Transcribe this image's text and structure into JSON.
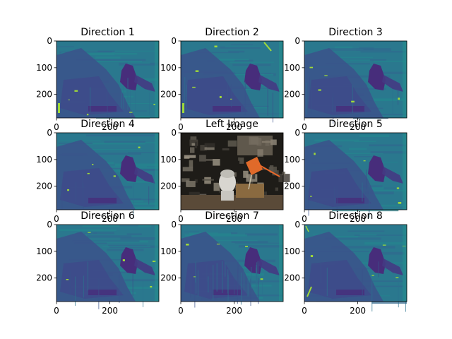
{
  "chart_data": {
    "type": "heatmap",
    "layout": "3x3 grid of image panels",
    "panels": [
      {
        "title": "Direction 1",
        "kind": "disparity",
        "seed": 11,
        "xticks": [
          "0",
          "200"
        ],
        "yticks": [
          "0",
          "100",
          "200"
        ]
      },
      {
        "title": "Direction 2",
        "kind": "disparity",
        "seed": 23,
        "xticks": [
          "0",
          "200"
        ],
        "yticks": [
          "0",
          "100",
          "200"
        ]
      },
      {
        "title": "Direction 3",
        "kind": "disparity",
        "seed": 37,
        "xticks": [
          "0",
          "200"
        ],
        "yticks": [
          "0",
          "100",
          "200"
        ]
      },
      {
        "title": "Direction 4",
        "kind": "disparity",
        "seed": 41,
        "xticks": [
          "0",
          "200"
        ],
        "yticks": [
          "0",
          "100",
          "200"
        ]
      },
      {
        "title": "Left Image",
        "kind": "photo",
        "seed": 53,
        "xticks": [
          "0",
          "200"
        ],
        "yticks": [
          "0",
          "100",
          "200"
        ]
      },
      {
        "title": "Direction 5",
        "kind": "disparity",
        "seed": 67,
        "xticks": [
          "0",
          "200"
        ],
        "yticks": [
          "0",
          "100",
          "200"
        ]
      },
      {
        "title": "Direction 6",
        "kind": "disparity",
        "seed": 71,
        "xticks": [
          "0",
          "200"
        ],
        "yticks": [
          "0",
          "100",
          "200"
        ]
      },
      {
        "title": "Direction 7",
        "kind": "disparity",
        "seed": 83,
        "xticks": [
          "0",
          "200"
        ],
        "yticks": [
          "0",
          "100",
          "200"
        ]
      },
      {
        "title": "Direction 8",
        "kind": "disparity",
        "seed": 97,
        "xticks": [
          "0",
          "200"
        ],
        "yticks": [
          "0",
          "100",
          "200"
        ]
      }
    ],
    "image_extent": {
      "x": [
        0,
        384
      ],
      "y": [
        288,
        0
      ]
    },
    "colormap": "viridis",
    "colors": {
      "background": "#2a788e",
      "region": "#3b528b",
      "object": "#472d7b",
      "highlight": "#a0da39",
      "edge": "#21918c"
    }
  }
}
